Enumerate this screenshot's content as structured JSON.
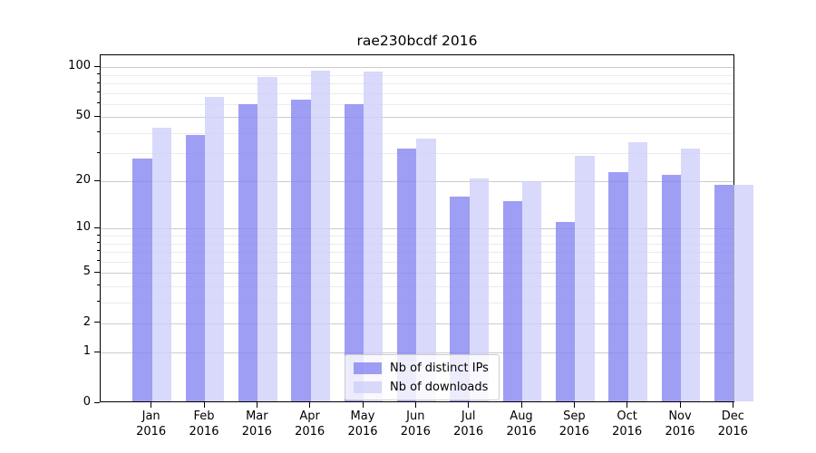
{
  "chart_data": {
    "type": "bar",
    "title": "rae230bcdf 2016",
    "months": [
      "Jan",
      "Feb",
      "Mar",
      "Apr",
      "May",
      "Jun",
      "Jul",
      "Aug",
      "Sep",
      "Oct",
      "Nov",
      "Dec"
    ],
    "year": "2016",
    "series": [
      {
        "name": "Nb of distinct IPs",
        "color": "rgba(134,134,241,0.8)",
        "net_color": "#9f9ff0",
        "values": [
          28,
          39,
          60,
          64,
          60,
          32,
          16,
          15,
          11,
          23,
          22,
          19
        ]
      },
      {
        "name": "Nb of downloads",
        "color": "rgba(208,208,250,0.8)",
        "net_color": "#d9d9f9",
        "values": [
          43,
          66,
          87,
          96,
          94,
          37,
          21,
          20,
          29,
          35,
          32,
          19
        ]
      }
    ],
    "yscale": "log1p",
    "ylim": [
      0,
      118
    ],
    "y_major_ticks": [
      100,
      50,
      20,
      10,
      5,
      2,
      1,
      0
    ],
    "y_minor_gridlines": [
      90,
      80,
      70,
      60,
      40,
      30,
      9,
      8,
      7,
      6,
      4,
      3
    ],
    "xlabel": "",
    "ylabel": "",
    "grid": "both",
    "legend_position": "lower center"
  },
  "colors": {
    "grid_major": "#cccccc",
    "grid_minor": "#ebebeb",
    "spine": "#000000",
    "tick": "#000000",
    "legend_border": "#cccccc",
    "legend_bg": "rgba(255,255,255,0.8)"
  }
}
